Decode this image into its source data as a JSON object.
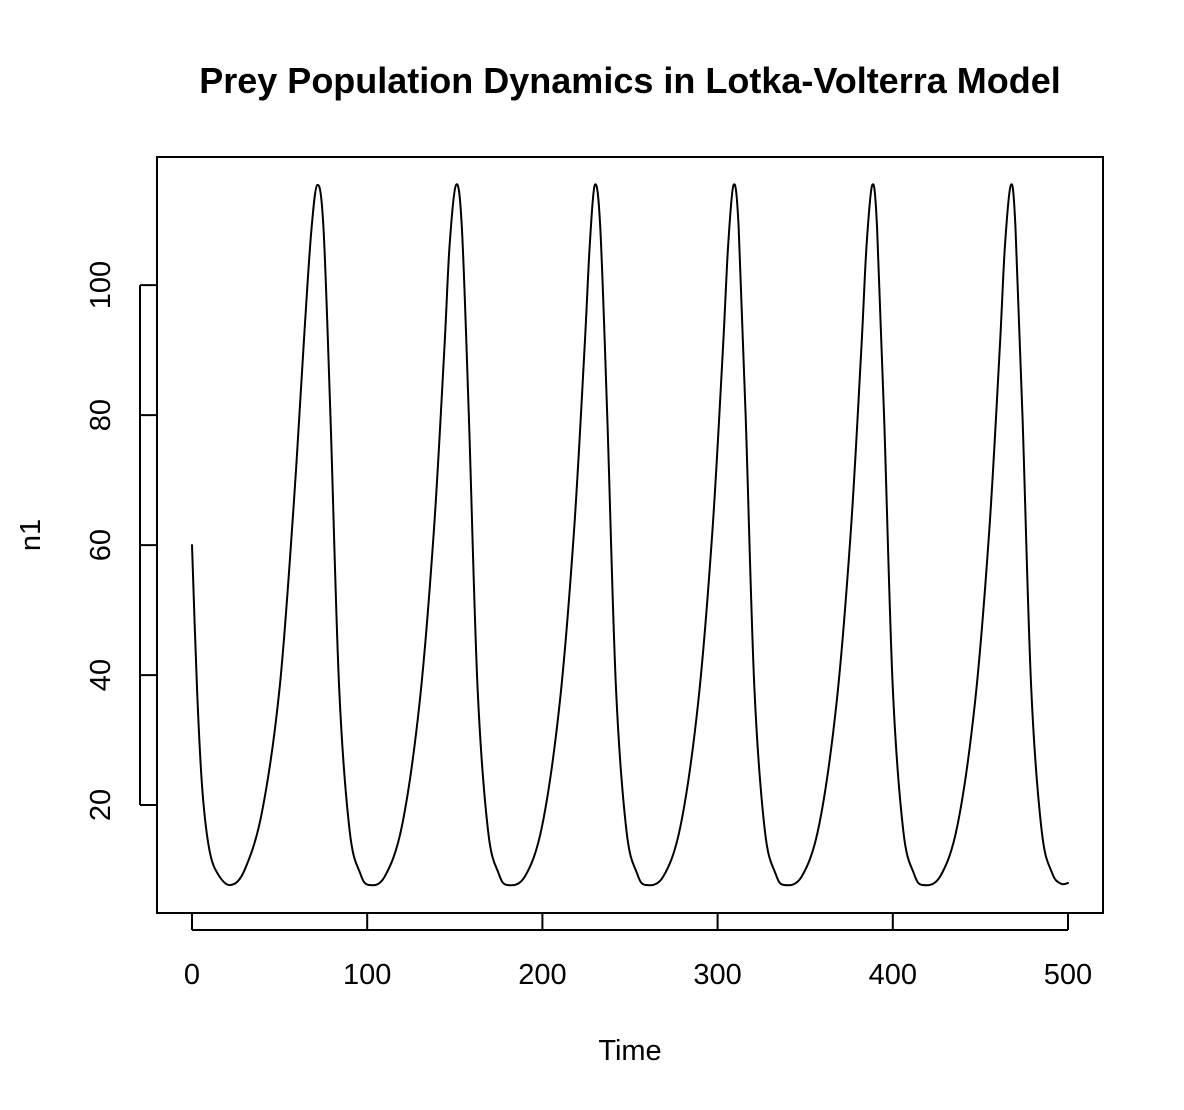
{
  "chart_data": {
    "type": "line",
    "title": "Prey Population Dynamics in Lotka-Volterra Model",
    "xlabel": "Time",
    "ylabel": "n1",
    "xlim": [
      0,
      500
    ],
    "ylim": [
      7.7,
      115.4
    ],
    "x_ticks": [
      0,
      100,
      200,
      300,
      400,
      500
    ],
    "y_ticks": [
      20,
      40,
      60,
      80,
      100
    ],
    "grid": false,
    "line_color": "#000000",
    "series": [
      {
        "x": [
          0,
          3,
          6,
          10,
          15,
          22,
          30,
          40,
          50,
          58,
          64,
          68,
          71.5,
          75,
          79,
          84,
          90,
          96,
          101,
          110,
          120,
          130,
          138,
          144,
          147,
          150.7,
          154,
          158,
          163,
          169,
          175,
          180,
          190,
          200,
          210,
          218,
          224,
          227,
          229.9,
          233,
          237,
          242,
          248,
          254,
          259,
          269,
          279,
          289,
          297,
          303,
          306,
          309.1,
          312,
          316,
          321,
          327,
          333,
          338,
          348,
          358,
          368,
          376,
          382,
          385,
          388.3,
          391,
          395,
          400,
          406,
          412,
          417,
          427,
          437,
          447,
          455,
          461,
          464,
          467.4,
          470,
          474,
          479,
          485,
          491,
          496,
          500
        ],
        "y": [
          60,
          37,
          22,
          13,
          9.3,
          7.7,
          10,
          19,
          38,
          66,
          92,
          108,
          115.4,
          109,
          80,
          38,
          16,
          9.5,
          7.7,
          9,
          17,
          36,
          62,
          90,
          106,
          115.4,
          109,
          80,
          38,
          16,
          9.5,
          7.7,
          9,
          17,
          36,
          62,
          90,
          106,
          115.4,
          109,
          80,
          38,
          16,
          9.5,
          7.7,
          9,
          17,
          36,
          62,
          90,
          106,
          115.4,
          109,
          80,
          38,
          16,
          9.5,
          7.7,
          9,
          17,
          36,
          62,
          90,
          106,
          115.4,
          109,
          80,
          38,
          16,
          9.5,
          7.7,
          9,
          17,
          36,
          62,
          90,
          106,
          115.4,
          109,
          80,
          38,
          16,
          9.5,
          7.9,
          8
        ]
      }
    ]
  }
}
